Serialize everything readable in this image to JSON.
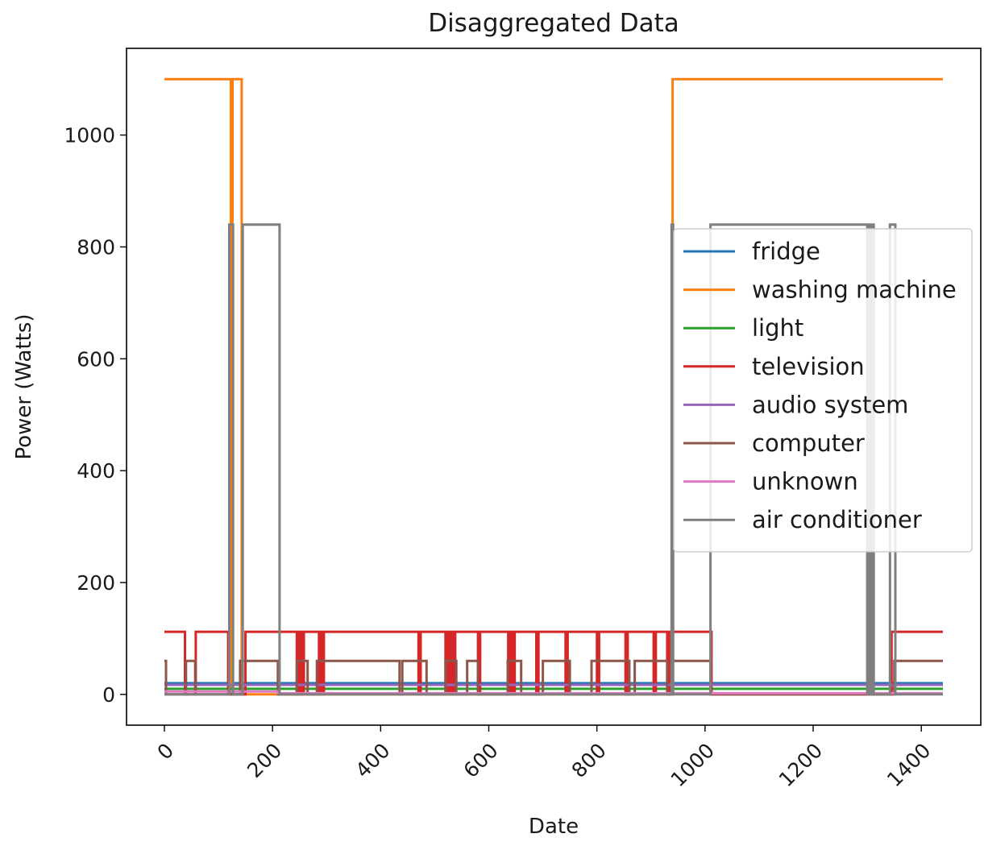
{
  "chart_data": {
    "type": "line",
    "title": "Disaggregated Data",
    "xlabel": "Date",
    "ylabel": "Power (Watts)",
    "xlim": [
      -70,
      1510
    ],
    "ylim": [
      -55,
      1155
    ],
    "xticks": [
      0,
      200,
      400,
      600,
      800,
      1000,
      1200,
      1400
    ],
    "yticks": [
      0,
      200,
      400,
      600,
      800,
      1000
    ],
    "grid": false,
    "legend_position": "center-right",
    "series": [
      {
        "name": "fridge",
        "color": "#1f77b4",
        "x": [
          0,
          1440
        ],
        "y": [
          20,
          20
        ]
      },
      {
        "name": "washing machine",
        "color": "#ff7f0e",
        "x": [
          0,
          123,
          123,
          126,
          126,
          143,
          143,
          146,
          146,
          940,
          940,
          1440
        ],
        "y": [
          1100,
          1100,
          0,
          0,
          1100,
          1100,
          0,
          0,
          0,
          0,
          1100,
          1100
        ]
      },
      {
        "name": "light",
        "color": "#2ca02c",
        "x": [
          0,
          1440
        ],
        "y": [
          10,
          10
        ]
      },
      {
        "name": "television",
        "color": "#d62728",
        "x": [
          0,
          38,
          38,
          42,
          42,
          55,
          55,
          58,
          58,
          60,
          60,
          118,
          118,
          122,
          122,
          150,
          150,
          153,
          153,
          245,
          245,
          248,
          248,
          250,
          250,
          253,
          253,
          256,
          256,
          258,
          258,
          260,
          260,
          286,
          286,
          289,
          289,
          292,
          292,
          295,
          295,
          298,
          298,
          470,
          470,
          474,
          474,
          520,
          520,
          524,
          524,
          528,
          528,
          532,
          532,
          535,
          535,
          538,
          538,
          580,
          580,
          584,
          584,
          636,
          636,
          640,
          640,
          644,
          644,
          648,
          648,
          688,
          688,
          692,
          692,
          742,
          742,
          746,
          746,
          800,
          800,
          804,
          804,
          853,
          853,
          857,
          857,
          905,
          905,
          909,
          909,
          930,
          930,
          934,
          934,
          1012,
          1012,
          1345,
          1345,
          1440
        ],
        "y": [
          112,
          112,
          0,
          0,
          0,
          0,
          0,
          0,
          112,
          112,
          112,
          112,
          0,
          0,
          0,
          0,
          112,
          112,
          112,
          112,
          0,
          0,
          112,
          112,
          0,
          0,
          112,
          112,
          0,
          0,
          112,
          112,
          112,
          112,
          0,
          0,
          112,
          112,
          0,
          0,
          112,
          112,
          112,
          112,
          0,
          0,
          112,
          112,
          0,
          0,
          112,
          112,
          0,
          0,
          112,
          112,
          0,
          0,
          112,
          112,
          0,
          0,
          112,
          112,
          0,
          0,
          112,
          112,
          0,
          0,
          112,
          112,
          0,
          0,
          112,
          112,
          0,
          0,
          112,
          112,
          0,
          0,
          112,
          112,
          0,
          0,
          112,
          112,
          0,
          0,
          112,
          112,
          0,
          0,
          112,
          112,
          0,
          0,
          112,
          112
        ]
      },
      {
        "name": "audio system",
        "color": "#9467bd",
        "x": [
          0,
          1440
        ],
        "y": [
          17,
          17
        ]
      },
      {
        "name": "computer",
        "color": "#8c564b",
        "x": [
          0,
          3,
          3,
          40,
          40,
          57,
          57,
          140,
          140,
          210,
          210,
          245,
          245,
          265,
          265,
          282,
          282,
          298,
          298,
          435,
          435,
          440,
          440,
          485,
          485,
          520,
          520,
          540,
          540,
          560,
          560,
          580,
          580,
          635,
          635,
          660,
          660,
          700,
          700,
          750,
          750,
          790,
          790,
          860,
          860,
          870,
          870,
          930,
          930,
          940,
          940,
          1010,
          1010,
          1350,
          1350,
          1440
        ],
        "y": [
          60,
          60,
          0,
          0,
          60,
          60,
          0,
          0,
          60,
          60,
          0,
          0,
          60,
          60,
          0,
          0,
          60,
          60,
          60,
          60,
          0,
          0,
          60,
          60,
          0,
          0,
          60,
          60,
          0,
          0,
          60,
          60,
          0,
          0,
          60,
          60,
          0,
          0,
          60,
          60,
          0,
          0,
          60,
          60,
          0,
          0,
          60,
          60,
          0,
          0,
          60,
          60,
          0,
          0,
          60,
          60
        ]
      },
      {
        "name": "unknown",
        "color": "#e377c2",
        "x": [
          0,
          210,
          210,
          1440
        ],
        "y": [
          5,
          5,
          2,
          2
        ]
      },
      {
        "name": "air conditioner",
        "color": "#7f7f7f",
        "x": [
          0,
          120,
          120,
          127,
          127,
          145,
          145,
          213,
          213,
          938,
          938,
          941,
          941,
          1010,
          1010,
          1300,
          1300,
          1303,
          1303,
          1306,
          1306,
          1309,
          1309,
          1312,
          1312,
          1342,
          1342,
          1352,
          1352,
          1440
        ],
        "y": [
          0,
          0,
          840,
          840,
          0,
          0,
          840,
          840,
          0,
          0,
          840,
          840,
          0,
          0,
          840,
          840,
          0,
          0,
          840,
          840,
          0,
          0,
          840,
          840,
          0,
          0,
          840,
          840,
          0,
          0
        ]
      }
    ]
  }
}
